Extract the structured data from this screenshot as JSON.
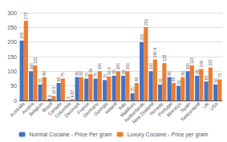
{
  "chart_data": {
    "type": "bar",
    "categories": [
      "Australia",
      "Austria",
      "Belgium",
      "Brazil",
      "Canada",
      "Colombia",
      "Denmark",
      "France",
      "Germany",
      "Georgia",
      "Ireland",
      "Italy",
      "Maldives",
      "Netherlands",
      "New Zealand",
      "Norway",
      "Portugal",
      "Morocco",
      "Spain",
      "Switzerland",
      "UK",
      "USA"
    ],
    "series": [
      {
        "name": "Normal Cocaine - Price Per gram",
        "color": "#4472c4",
        "values": [
          205,
          100,
          55,
          6,
          60,
          1,
          80,
          75,
          75,
          70,
          85,
          85,
          25,
          200,
          100,
          55,
          80,
          50,
          100,
          85,
          65,
          55
        ]
      },
      {
        "name": "Luxury Cocaine - Price per gram",
        "color": "#ed7d31",
        "values": [
          273,
          120,
          80,
          15.5,
          75,
          4.67,
          80,
          90,
          100,
          82.5,
          100,
          100,
          60,
          251,
          140.4,
          128,
          60,
          80,
          120,
          108,
          113,
          72
        ]
      }
    ],
    "ylim": [
      0,
      300
    ],
    "yticks": [
      0,
      50,
      100,
      150,
      200,
      250,
      300
    ],
    "grid": true,
    "legend": "bottom",
    "data_labels": true
  }
}
